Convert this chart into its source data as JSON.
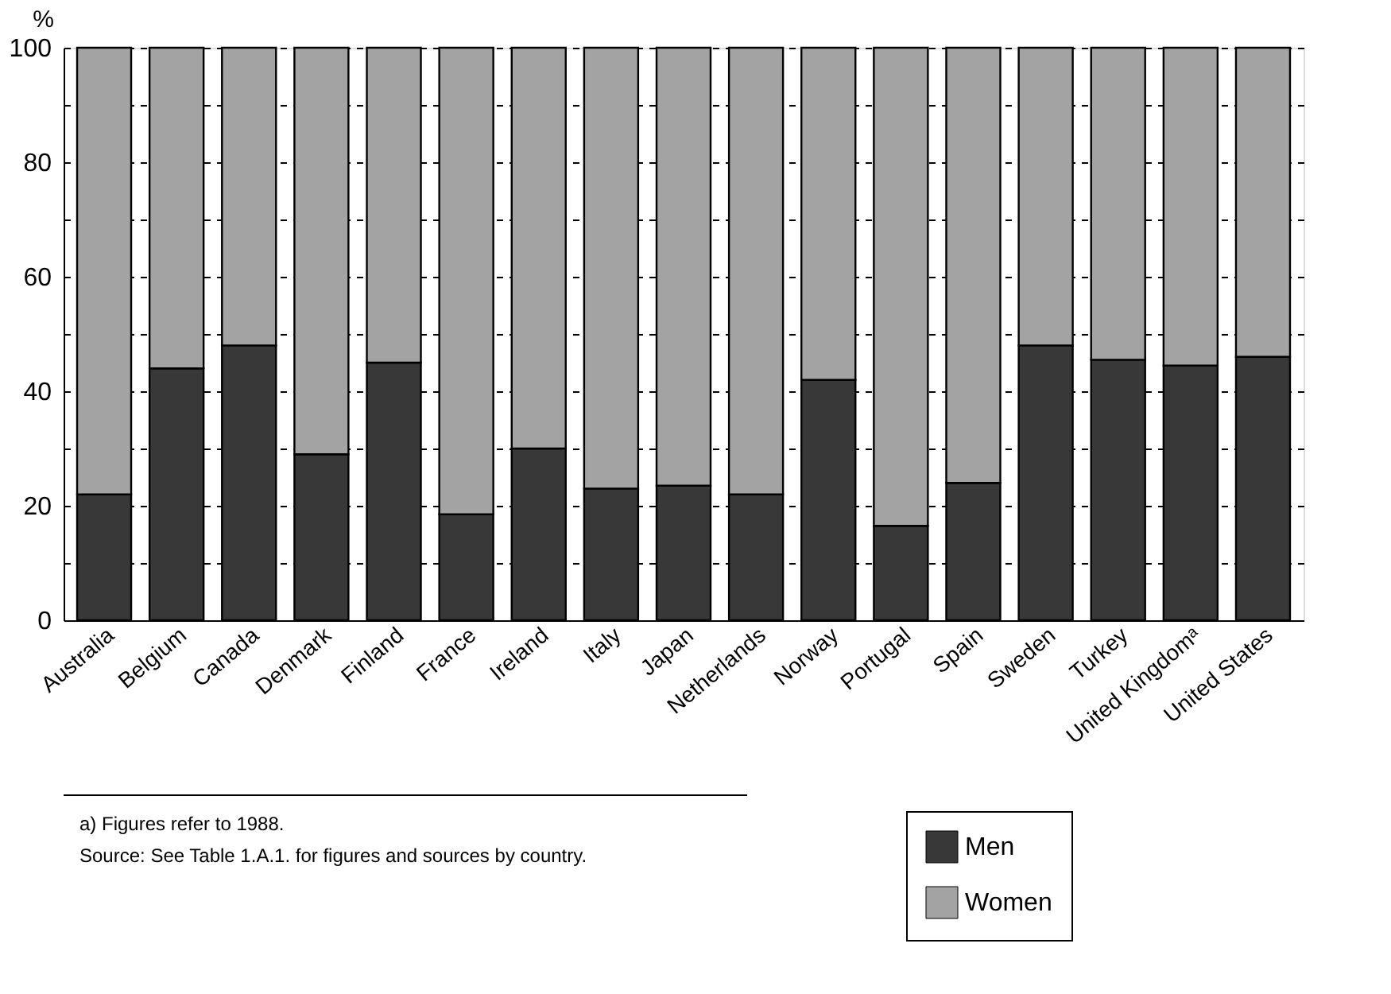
{
  "chart_data": {
    "type": "bar",
    "stacked": true,
    "ylabel": "%",
    "categories": [
      "Australia",
      "Belgium",
      "Canada",
      "Denmark",
      "Finland",
      "France",
      "Ireland",
      "Italy",
      "Japan",
      "Netherlands",
      "Norway",
      "Portugal",
      "Spain",
      "Sweden",
      "Turkey",
      "United Kingdomᵃ",
      "United States"
    ],
    "series": [
      {
        "name": "Men",
        "color": "#383838",
        "values": [
          22,
          44,
          48,
          29,
          45,
          18.5,
          30,
          23,
          23.5,
          22,
          42,
          16.5,
          24,
          48,
          45.5,
          44.5,
          46
        ]
      },
      {
        "name": "Women",
        "color": "#a3a3a3",
        "values": [
          78,
          56,
          52,
          71,
          55,
          81.5,
          70,
          77,
          76.5,
          78,
          58,
          83.5,
          76,
          52,
          54.5,
          55.5,
          54
        ]
      }
    ],
    "ylim": [
      0,
      100
    ],
    "yticks": [
      0,
      {
        "value": 10,
        "label": null
      },
      20,
      {
        "value": 30,
        "label": null
      },
      40,
      {
        "value": 50,
        "label": null
      },
      60,
      {
        "value": 70,
        "label": null
      },
      80,
      {
        "value": 90,
        "label": null
      },
      100
    ],
    "grid": "y",
    "line_style": "dashed",
    "legend": "bottom right",
    "annotations": [
      "a) Figures refer to 1988.",
      "Source: See Table 1.A.1. for figures and sources by country."
    ]
  }
}
